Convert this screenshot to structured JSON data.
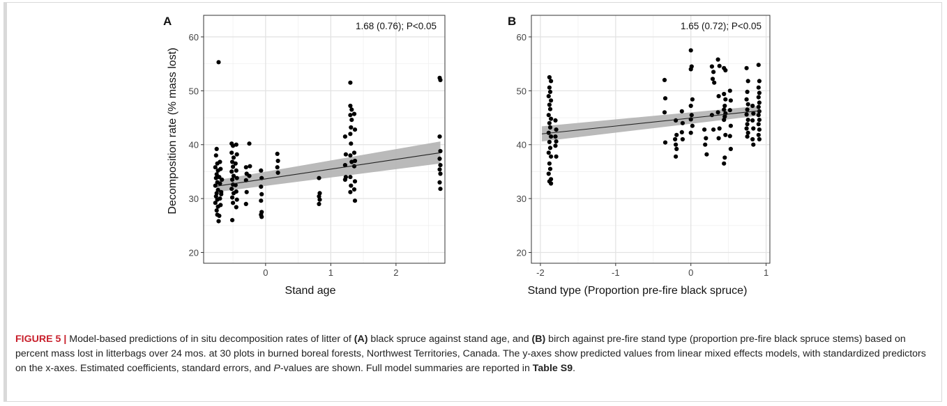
{
  "chart_data": [
    {
      "type": "scatter",
      "panel_label": "A",
      "annotation": "1.68 (0.76); P<0.05",
      "xlabel": "Stand age",
      "ylabel": "Decomposition rate (% mass lost)",
      "xlim": [
        -0.95,
        2.75
      ],
      "ylim": [
        18,
        64
      ],
      "xticks": [
        0,
        1,
        2
      ],
      "yticks": [
        20,
        30,
        40,
        50,
        60
      ],
      "grid": true,
      "fit_line": {
        "x": [
          -0.75,
          2.68
        ],
        "y": [
          32.3,
          38.5
        ]
      },
      "ci_band": {
        "x": [
          -0.75,
          2.68
        ],
        "lower": [
          31.2,
          36.5
        ],
        "upper": [
          33.4,
          40.6
        ]
      },
      "series": [
        {
          "points": [
            [
              -0.72,
              55.3
            ],
            [
              -0.75,
              39.2
            ],
            [
              -0.76,
              38.0
            ],
            [
              -0.74,
              36.5
            ],
            [
              -0.77,
              35.8
            ],
            [
              -0.73,
              35.2
            ],
            [
              -0.75,
              34.5
            ],
            [
              -0.76,
              33.8
            ],
            [
              -0.74,
              33.0
            ],
            [
              -0.77,
              32.4
            ],
            [
              -0.73,
              31.6
            ],
            [
              -0.75,
              31.0
            ],
            [
              -0.76,
              30.4
            ],
            [
              -0.74,
              29.8
            ],
            [
              -0.77,
              29.2
            ],
            [
              -0.73,
              28.5
            ],
            [
              -0.75,
              27.8
            ],
            [
              -0.74,
              27.0
            ],
            [
              -0.72,
              25.8
            ],
            [
              -0.7,
              36.8
            ],
            [
              -0.69,
              35.5
            ],
            [
              -0.71,
              34.0
            ],
            [
              -0.7,
              32.8
            ],
            [
              -0.68,
              31.2
            ],
            [
              -0.7,
              30.0
            ],
            [
              -0.69,
              28.8
            ],
            [
              -0.71,
              26.8
            ],
            [
              -0.67,
              33.5
            ],
            [
              -0.68,
              30.8
            ],
            [
              -0.52,
              40.2
            ],
            [
              -0.5,
              39.8
            ],
            [
              -0.52,
              38.5
            ],
            [
              -0.49,
              37.6
            ],
            [
              -0.51,
              36.8
            ],
            [
              -0.5,
              35.9
            ],
            [
              -0.52,
              35.0
            ],
            [
              -0.49,
              34.2
            ],
            [
              -0.51,
              33.5
            ],
            [
              -0.5,
              32.6
            ],
            [
              -0.52,
              31.8
            ],
            [
              -0.49,
              31.0
            ],
            [
              -0.51,
              30.2
            ],
            [
              -0.5,
              29.2
            ],
            [
              -0.51,
              26.0
            ],
            [
              -0.45,
              40.0
            ],
            [
              -0.44,
              38.2
            ],
            [
              -0.46,
              36.5
            ],
            [
              -0.45,
              35.2
            ],
            [
              -0.44,
              33.8
            ],
            [
              -0.46,
              32.5
            ],
            [
              -0.45,
              31.3
            ],
            [
              -0.44,
              29.8
            ],
            [
              -0.45,
              28.4
            ],
            [
              -0.3,
              35.8
            ],
            [
              -0.29,
              34.6
            ],
            [
              -0.3,
              33.4
            ],
            [
              -0.29,
              31.2
            ],
            [
              -0.3,
              29.0
            ],
            [
              -0.25,
              40.2
            ],
            [
              -0.24,
              36.0
            ],
            [
              -0.25,
              34.2
            ],
            [
              -0.07,
              35.2
            ],
            [
              -0.06,
              33.8
            ],
            [
              -0.07,
              32.2
            ],
            [
              -0.06,
              30.8
            ],
            [
              -0.07,
              29.6
            ],
            [
              -0.06,
              27.5
            ],
            [
              -0.07,
              27.0
            ],
            [
              -0.06,
              26.6
            ],
            [
              0.18,
              38.3
            ],
            [
              0.19,
              37.0
            ],
            [
              0.18,
              35.8
            ],
            [
              0.19,
              34.8
            ],
            [
              0.82,
              33.8
            ],
            [
              0.83,
              31.0
            ],
            [
              0.82,
              30.4
            ],
            [
              0.83,
              29.8
            ],
            [
              0.82,
              29.0
            ],
            [
              1.22,
              41.5
            ],
            [
              1.23,
              38.2
            ],
            [
              1.22,
              36.2
            ],
            [
              1.23,
              34.0
            ],
            [
              1.22,
              33.5
            ],
            [
              1.3,
              51.5
            ],
            [
              1.3,
              47.2
            ],
            [
              1.32,
              46.5
            ],
            [
              1.3,
              45.5
            ],
            [
              1.32,
              44.6
            ],
            [
              1.31,
              43.2
            ],
            [
              1.3,
              42.0
            ],
            [
              1.31,
              40.2
            ],
            [
              1.3,
              38.0
            ],
            [
              1.32,
              36.8
            ],
            [
              1.3,
              34.0
            ],
            [
              1.31,
              32.4
            ],
            [
              1.3,
              31.2
            ],
            [
              1.36,
              45.7
            ],
            [
              1.37,
              42.8
            ],
            [
              1.36,
              38.5
            ],
            [
              1.37,
              37.0
            ],
            [
              1.36,
              36.0
            ],
            [
              1.37,
              33.2
            ],
            [
              1.36,
              31.7
            ],
            [
              1.37,
              29.6
            ],
            [
              2.67,
              52.4
            ],
            [
              2.68,
              52.0
            ],
            [
              2.67,
              41.5
            ],
            [
              2.68,
              38.8
            ],
            [
              2.67,
              37.4
            ],
            [
              2.68,
              36.2
            ],
            [
              2.67,
              35.4
            ],
            [
              2.68,
              34.6
            ],
            [
              2.67,
              33.0
            ],
            [
              2.68,
              31.8
            ]
          ]
        }
      ]
    },
    {
      "type": "scatter",
      "panel_label": "B",
      "annotation": "1.65 (0.72); P<0.05",
      "xlabel": "Stand type (Proportion pre-fire black spruce)",
      "ylabel": "",
      "xlim": [
        -2.12,
        1.05
      ],
      "ylim": [
        18,
        64
      ],
      "xticks": [
        -2,
        -1,
        0,
        1
      ],
      "yticks": [
        20,
        30,
        40,
        50,
        60
      ],
      "grid": true,
      "fit_line": {
        "x": [
          -1.98,
          0.92
        ],
        "y": [
          42.0,
          46.3
        ]
      },
      "ci_band": {
        "x": [
          -1.98,
          0.92
        ],
        "lower": [
          40.6,
          45.4
        ],
        "upper": [
          43.4,
          47.2
        ]
      },
      "series": [
        {
          "points": [
            [
              -1.88,
              52.5
            ],
            [
              -1.86,
              51.8
            ],
            [
              -1.88,
              50.6
            ],
            [
              -1.87,
              49.8
            ],
            [
              -1.89,
              49.0
            ],
            [
              -1.86,
              48.2
            ],
            [
              -1.88,
              47.4
            ],
            [
              -1.87,
              46.6
            ],
            [
              -1.89,
              45.5
            ],
            [
              -1.86,
              44.8
            ],
            [
              -1.88,
              44.0
            ],
            [
              -1.87,
              43.2
            ],
            [
              -1.89,
              42.2
            ],
            [
              -1.86,
              41.5
            ],
            [
              -1.88,
              40.5
            ],
            [
              -1.87,
              39.4
            ],
            [
              -1.89,
              38.5
            ],
            [
              -1.86,
              37.8
            ],
            [
              -1.88,
              36.5
            ],
            [
              -1.87,
              35.5
            ],
            [
              -1.89,
              34.6
            ],
            [
              -1.86,
              33.6
            ],
            [
              -1.88,
              33.2
            ],
            [
              -1.86,
              32.8
            ],
            [
              -1.8,
              44.5
            ],
            [
              -1.79,
              42.8
            ],
            [
              -1.8,
              41.5
            ],
            [
              -1.79,
              40.6
            ],
            [
              -1.8,
              39.8
            ],
            [
              -1.79,
              37.8
            ],
            [
              -0.35,
              52.0
            ],
            [
              -0.34,
              48.6
            ],
            [
              -0.35,
              46.0
            ],
            [
              -0.34,
              40.4
            ],
            [
              -0.2,
              44.5
            ],
            [
              -0.19,
              41.8
            ],
            [
              -0.21,
              41.0
            ],
            [
              -0.2,
              40.0
            ],
            [
              -0.19,
              39.2
            ],
            [
              -0.2,
              37.8
            ],
            [
              -0.12,
              46.2
            ],
            [
              -0.11,
              44.0
            ],
            [
              -0.12,
              42.3
            ],
            [
              -0.11,
              41.0
            ],
            [
              0.0,
              57.5
            ],
            [
              0.01,
              54.5
            ],
            [
              0.0,
              54.0
            ],
            [
              0.02,
              48.4
            ],
            [
              0.0,
              47.2
            ],
            [
              0.01,
              45.5
            ],
            [
              0.0,
              44.7
            ],
            [
              0.02,
              43.5
            ],
            [
              0.0,
              42.2
            ],
            [
              0.18,
              42.8
            ],
            [
              0.2,
              41.2
            ],
            [
              0.19,
              40.0
            ],
            [
              0.21,
              38.2
            ],
            [
              0.28,
              54.5
            ],
            [
              0.3,
              53.5
            ],
            [
              0.29,
              52.2
            ],
            [
              0.31,
              51.5
            ],
            [
              0.28,
              45.5
            ],
            [
              0.3,
              42.8
            ],
            [
              0.36,
              55.8
            ],
            [
              0.38,
              54.6
            ],
            [
              0.37,
              49.0
            ],
            [
              0.36,
              46.0
            ],
            [
              0.38,
              43.0
            ],
            [
              0.37,
              41.2
            ],
            [
              0.44,
              54.2
            ],
            [
              0.46,
              53.8
            ],
            [
              0.44,
              49.4
            ],
            [
              0.46,
              48.4
            ],
            [
              0.45,
              47.2
            ],
            [
              0.44,
              46.5
            ],
            [
              0.46,
              45.8
            ],
            [
              0.45,
              45.2
            ],
            [
              0.44,
              44.6
            ],
            [
              0.46,
              41.8
            ],
            [
              0.45,
              37.6
            ],
            [
              0.44,
              36.5
            ],
            [
              0.52,
              50.0
            ],
            [
              0.53,
              48.2
            ],
            [
              0.52,
              46.4
            ],
            [
              0.53,
              43.5
            ],
            [
              0.52,
              41.6
            ],
            [
              0.53,
              39.2
            ],
            [
              0.74,
              54.2
            ],
            [
              0.76,
              51.8
            ],
            [
              0.75,
              49.8
            ],
            [
              0.74,
              48.4
            ],
            [
              0.76,
              47.5
            ],
            [
              0.75,
              46.5
            ],
            [
              0.74,
              45.6
            ],
            [
              0.76,
              44.6
            ],
            [
              0.75,
              43.8
            ],
            [
              0.74,
              43.0
            ],
            [
              0.76,
              42.2
            ],
            [
              0.75,
              41.5
            ],
            [
              0.82,
              47.2
            ],
            [
              0.83,
              45.8
            ],
            [
              0.82,
              44.5
            ],
            [
              0.83,
              43.0
            ],
            [
              0.82,
              41.0
            ],
            [
              0.83,
              40.0
            ],
            [
              0.9,
              54.8
            ],
            [
              0.91,
              51.8
            ],
            [
              0.9,
              50.6
            ],
            [
              0.91,
              49.6
            ],
            [
              0.9,
              48.8
            ],
            [
              0.91,
              47.8
            ],
            [
              0.9,
              47.0
            ],
            [
              0.91,
              46.2
            ],
            [
              0.9,
              45.5
            ],
            [
              0.91,
              44.6
            ],
            [
              0.9,
              43.8
            ],
            [
              0.91,
              42.8
            ],
            [
              0.9,
              41.8
            ],
            [
              0.91,
              41.0
            ]
          ]
        }
      ]
    }
  ],
  "caption": {
    "figure_label": "FIGURE 5 |",
    "part1": " Model-based predictions of in situ decomposition rates of litter of ",
    "bold_a": "(A)",
    "part2": " black spruce against stand age, and ",
    "bold_b": "(B)",
    "part3": " birch against pre-fire stand type (proportion pre-fire black spruce stems) based on percent mass lost in litterbags over 24 mos. at 30 plots in burned boreal forests, Northwest Territories, Canada. The y-axes show predicted values from linear mixed effects models, with standardized predictors on the x-axes. Estimated coefficients, standard errors, and ",
    "italic_p": "P",
    "part4": "-values are shown. Full model summaries are reported in ",
    "bold_table": "Table S9",
    "part5": "."
  }
}
